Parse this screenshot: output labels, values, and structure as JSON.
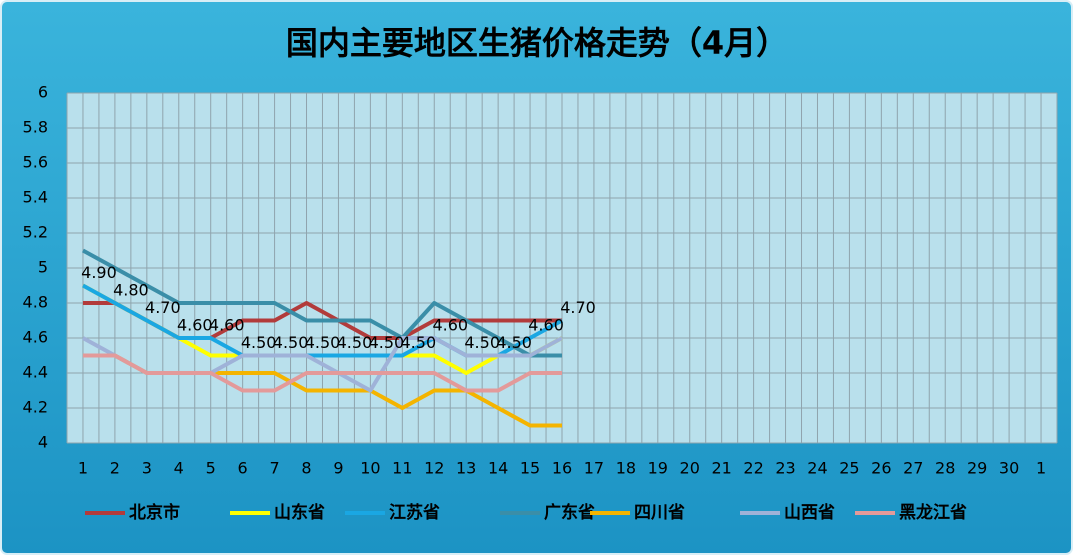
{
  "chart_data": {
    "type": "line",
    "title": "国内主要地区生猪价格走势（4月）",
    "categories": [
      "1",
      "2",
      "3",
      "4",
      "5",
      "6",
      "7",
      "8",
      "9",
      "10",
      "11",
      "12",
      "13",
      "14",
      "15",
      "16",
      "17",
      "18",
      "19",
      "20",
      "21",
      "22",
      "23",
      "24",
      "25",
      "26",
      "27",
      "28",
      "29",
      "30",
      "1"
    ],
    "ylim": [
      4,
      6
    ],
    "yticks": [
      4,
      4.2,
      4.4,
      4.6,
      4.8,
      5,
      5.2,
      5.4,
      5.6,
      5.8,
      6
    ],
    "grid": true,
    "legend": "bottom",
    "series": [
      {
        "name": "北京市",
        "color": "#b23b3b",
        "values": [
          4.8,
          4.8,
          4.7,
          4.6,
          4.6,
          4.7,
          4.7,
          4.8,
          4.7,
          4.6,
          4.6,
          4.7,
          4.7,
          4.7,
          4.7,
          4.7,
          null,
          null,
          null,
          null,
          null,
          null,
          null,
          null,
          null,
          null,
          null,
          null,
          null,
          null,
          null
        ]
      },
      {
        "name": "山东省",
        "color": "#ffff00",
        "values": [
          4.9,
          4.8,
          4.7,
          4.6,
          4.5,
          4.5,
          4.5,
          4.5,
          4.5,
          4.5,
          4.5,
          4.5,
          4.4,
          4.5,
          4.5,
          4.6,
          null,
          null,
          null,
          null,
          null,
          null,
          null,
          null,
          null,
          null,
          null,
          null,
          null,
          null,
          null
        ]
      },
      {
        "name": "江苏省",
        "color": "#1aa7e3",
        "values": [
          4.9,
          4.8,
          4.7,
          4.6,
          4.6,
          4.5,
          4.5,
          4.5,
          4.5,
          4.5,
          4.5,
          4.6,
          4.5,
          4.5,
          4.6,
          4.7,
          null,
          null,
          null,
          null,
          null,
          null,
          null,
          null,
          null,
          null,
          null,
          null,
          null,
          null,
          null
        ],
        "value_labels": [
          "4.90",
          "4.80",
          "4.70",
          "4.60",
          "4.60",
          "4.50",
          "4.50",
          "4.50",
          "4.50",
          "4.50",
          "4.50",
          "4.60",
          "4.50",
          "4.50",
          "4.60",
          "4.70",
          null,
          null,
          null,
          null,
          null,
          null,
          null,
          null,
          null,
          null,
          null,
          null,
          null,
          null,
          null
        ]
      },
      {
        "name": "广东省",
        "color": "#3a8ea8",
        "values": [
          5.1,
          5.0,
          4.9,
          4.8,
          4.8,
          4.8,
          4.8,
          4.7,
          4.7,
          4.7,
          4.6,
          4.8,
          4.7,
          4.6,
          4.5,
          4.5,
          null,
          null,
          null,
          null,
          null,
          null,
          null,
          null,
          null,
          null,
          null,
          null,
          null,
          null,
          null
        ]
      },
      {
        "name": "四川省",
        "color": "#f4b400",
        "values": [
          4.5,
          4.5,
          4.4,
          4.4,
          4.4,
          4.4,
          4.4,
          4.3,
          4.3,
          4.3,
          4.2,
          4.3,
          4.3,
          4.2,
          4.1,
          4.1,
          null,
          null,
          null,
          null,
          null,
          null,
          null,
          null,
          null,
          null,
          null,
          null,
          null,
          null,
          null
        ]
      },
      {
        "name": "山西省",
        "color": "#9fb2d8",
        "values": [
          4.6,
          4.5,
          4.4,
          4.4,
          4.4,
          4.5,
          4.5,
          4.5,
          4.4,
          4.3,
          4.6,
          4.6,
          4.5,
          4.5,
          4.5,
          4.6,
          null,
          null,
          null,
          null,
          null,
          null,
          null,
          null,
          null,
          null,
          null,
          null,
          null,
          null,
          null
        ]
      },
      {
        "name": "黑龙江省",
        "color": "#e39a9a",
        "values": [
          4.5,
          4.5,
          4.4,
          4.4,
          4.4,
          4.3,
          4.3,
          4.4,
          4.4,
          4.4,
          4.4,
          4.4,
          4.3,
          4.3,
          4.4,
          4.4,
          null,
          null,
          null,
          null,
          null,
          null,
          null,
          null,
          null,
          null,
          null,
          null,
          null,
          null,
          null
        ]
      }
    ]
  }
}
